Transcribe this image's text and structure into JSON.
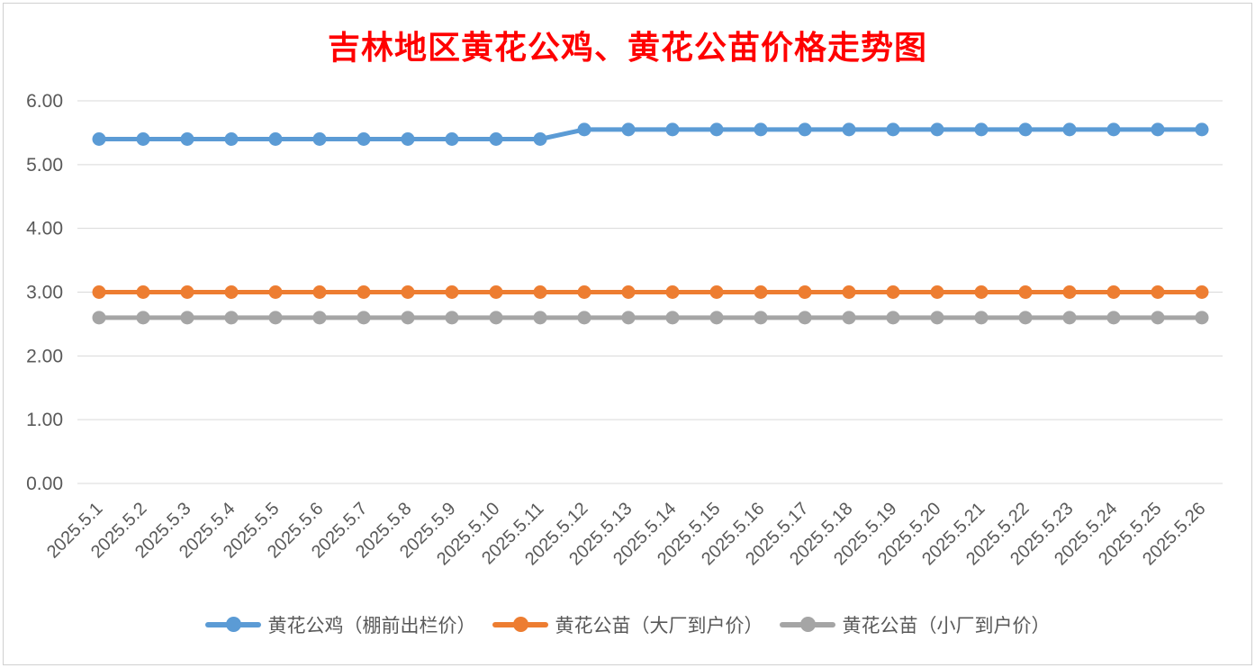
{
  "chart_data": {
    "type": "line",
    "title": "吉林地区黄花公鸡、黄花公苗价格走势图",
    "xlabel": "",
    "ylabel": "",
    "ylim": [
      0,
      6
    ],
    "yticks": [
      "0.00",
      "1.00",
      "2.00",
      "3.00",
      "4.00",
      "5.00",
      "6.00"
    ],
    "grid": true,
    "legend_position": "bottom",
    "categories": [
      "2025.5.1",
      "2025.5.2",
      "2025.5.3",
      "2025.5.4",
      "2025.5.5",
      "2025.5.6",
      "2025.5.7",
      "2025.5.8",
      "2025.5.9",
      "2025.5.10",
      "2025.5.11",
      "2025.5.12",
      "2025.5.13",
      "2025.5.14",
      "2025.5.15",
      "2025.5.16",
      "2025.5.17",
      "2025.5.18",
      "2025.5.19",
      "2025.5.20",
      "2025.5.21",
      "2025.5.22",
      "2025.5.23",
      "2025.5.24",
      "2025.5.25",
      "2025.5.26"
    ],
    "series": [
      {
        "name": "黄花公鸡（棚前出栏价）",
        "color": "#5b9bd5",
        "values": [
          5.4,
          5.4,
          5.4,
          5.4,
          5.4,
          5.4,
          5.4,
          5.4,
          5.4,
          5.4,
          5.4,
          5.55,
          5.55,
          5.55,
          5.55,
          5.55,
          5.55,
          5.55,
          5.55,
          5.55,
          5.55,
          5.55,
          5.55,
          5.55,
          5.55,
          5.55
        ]
      },
      {
        "name": "黄花公苗（大厂到户价）",
        "color": "#ed7d31",
        "values": [
          3.0,
          3.0,
          3.0,
          3.0,
          3.0,
          3.0,
          3.0,
          3.0,
          3.0,
          3.0,
          3.0,
          3.0,
          3.0,
          3.0,
          3.0,
          3.0,
          3.0,
          3.0,
          3.0,
          3.0,
          3.0,
          3.0,
          3.0,
          3.0,
          3.0,
          3.0
        ]
      },
      {
        "name": "黄花公苗（小厂到户价）",
        "color": "#a5a5a5",
        "values": [
          2.6,
          2.6,
          2.6,
          2.6,
          2.6,
          2.6,
          2.6,
          2.6,
          2.6,
          2.6,
          2.6,
          2.6,
          2.6,
          2.6,
          2.6,
          2.6,
          2.6,
          2.6,
          2.6,
          2.6,
          2.6,
          2.6,
          2.6,
          2.6,
          2.6,
          2.6
        ]
      }
    ]
  }
}
